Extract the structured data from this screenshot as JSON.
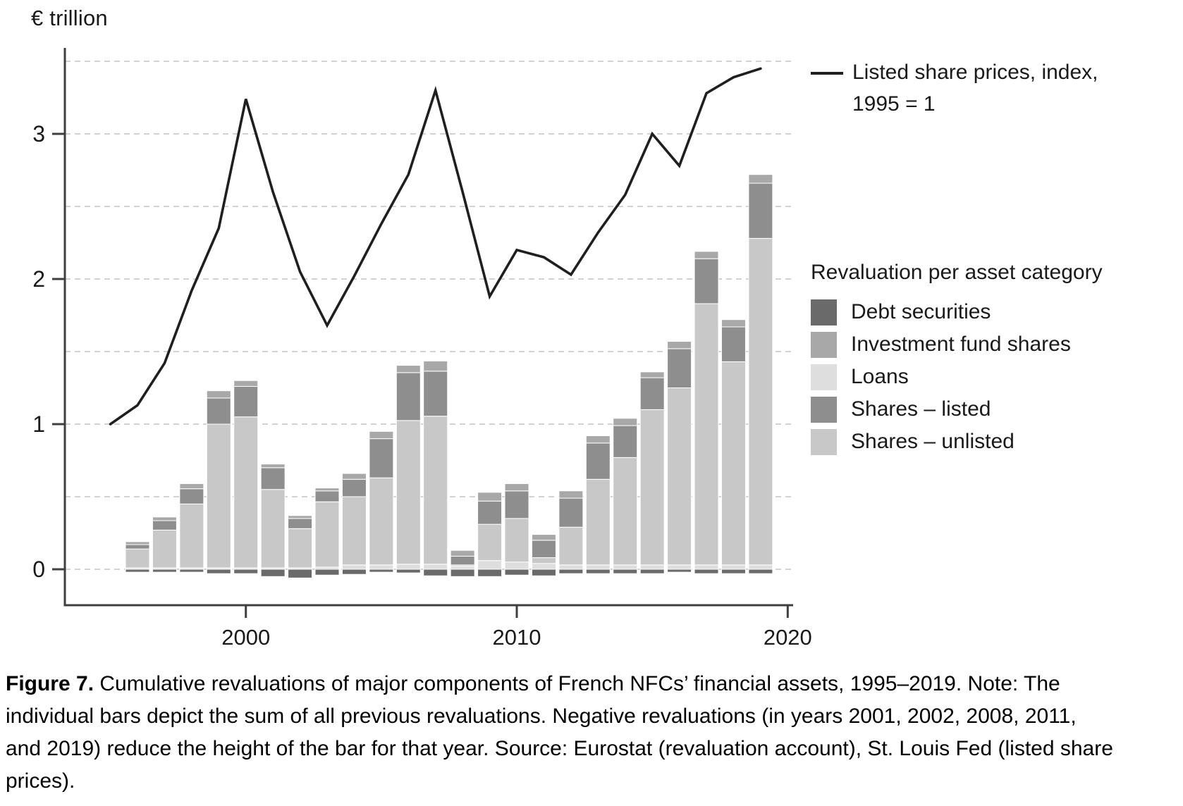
{
  "chart": {
    "y_axis_title": "€ trillion",
    "legend_line": {
      "label_line1": "Listed share prices, index,",
      "label_line2": "1995 = 1"
    },
    "legend_categories": {
      "title": "Revaluation per asset category",
      "items": [
        {
          "label": "Debt securities",
          "color": "#6a6a6a"
        },
        {
          "label": "Investment fund shares",
          "color": "#a8a8a8"
        },
        {
          "label": "Loans",
          "color": "#dedede"
        },
        {
          "label": "Shares – listed",
          "color": "#8e8e8e"
        },
        {
          "label": "Shares – unlisted",
          "color": "#c8c8c8"
        }
      ]
    }
  },
  "chart_data": {
    "type": "bar+line",
    "title": "Cumulative revaluations of major components of French NFCs’ financial assets, 1995–2019",
    "ylabel": "€ trillion",
    "ylim": [
      -0.35,
      3.6
    ],
    "y_ticks": [
      0,
      1,
      2,
      3
    ],
    "x_ticks": [
      2000,
      2010,
      2020
    ],
    "grid": "horizontal dashed every 0.5",
    "legend_position": "right",
    "categories": [
      1996,
      1997,
      1998,
      1999,
      2000,
      2001,
      2002,
      2003,
      2004,
      2005,
      2006,
      2007,
      2008,
      2009,
      2010,
      2011,
      2012,
      2013,
      2014,
      2015,
      2016,
      2017,
      2018,
      2019
    ],
    "series": [
      {
        "name": "Loans",
        "color": "#dedede",
        "values": [
          0.01,
          0.01,
          0.01,
          0.01,
          0.01,
          0.01,
          0.01,
          0.015,
          0.03,
          0.03,
          0.035,
          0.035,
          0.02,
          0.06,
          0.05,
          0.04,
          0.03,
          0.03,
          0.03,
          0.03,
          0.03,
          0.03,
          0.03,
          0.03
        ]
      },
      {
        "name": "Shares – unlisted",
        "color": "#c8c8c8",
        "values": [
          0.13,
          0.26,
          0.44,
          0.99,
          1.04,
          0.54,
          0.27,
          0.45,
          0.47,
          0.6,
          0.99,
          1.02,
          0.01,
          0.25,
          0.3,
          0.04,
          0.26,
          0.59,
          0.74,
          1.07,
          1.22,
          1.8,
          1.4,
          2.25
        ]
      },
      {
        "name": "Shares – listed",
        "color": "#8e8e8e",
        "values": [
          0.03,
          0.065,
          0.105,
          0.18,
          0.21,
          0.15,
          0.07,
          0.075,
          0.12,
          0.27,
          0.33,
          0.31,
          0.06,
          0.16,
          0.19,
          0.12,
          0.2,
          0.25,
          0.22,
          0.22,
          0.27,
          0.31,
          0.24,
          0.38
        ]
      },
      {
        "name": "Investment fund shares",
        "color": "#a8a8a8",
        "values": [
          0.02,
          0.025,
          0.035,
          0.05,
          0.04,
          0.025,
          0.02,
          0.02,
          0.04,
          0.05,
          0.05,
          0.07,
          0.04,
          0.06,
          0.05,
          0.04,
          0.05,
          0.05,
          0.05,
          0.04,
          0.05,
          0.05,
          0.05,
          0.06
        ]
      },
      {
        "name": "Debt securities",
        "color": "#6a6a6a",
        "values": [
          -0.02,
          -0.02,
          -0.02,
          -0.03,
          -0.03,
          -0.05,
          -0.06,
          -0.04,
          -0.035,
          -0.02,
          -0.025,
          -0.045,
          -0.05,
          -0.05,
          -0.04,
          -0.045,
          -0.03,
          -0.03,
          -0.03,
          -0.03,
          -0.02,
          -0.03,
          -0.03,
          -0.03
        ]
      }
    ],
    "line_series": {
      "name": "Listed share prices, index, 1995 = 1",
      "color": "#1f1f1f",
      "x": [
        1995,
        1996,
        1997,
        1998,
        1999,
        2000,
        2001,
        2002,
        2003,
        2004,
        2005,
        2006,
        2007,
        2008,
        2009,
        2010,
        2011,
        2012,
        2013,
        2014,
        2015,
        2016,
        2017,
        2018,
        2019
      ],
      "values": [
        1.0,
        1.13,
        1.42,
        1.92,
        2.35,
        3.24,
        2.6,
        2.05,
        1.68,
        2.02,
        2.38,
        2.72,
        3.3,
        2.6,
        1.88,
        2.2,
        2.15,
        2.03,
        2.32,
        2.58,
        3.0,
        2.78,
        3.28,
        3.39,
        3.45
      ]
    }
  },
  "caption": {
    "label": "Figure 7.",
    "text": "  Cumulative revaluations of major components of French NFCs’ financial assets, 1995–2019. Note: The individual bars depict the sum of all previous revaluations. Negative revaluations (in years 2001, 2002, 2008, 2011, and 2019) reduce the height of the bar for that year. Source: Eurostat (revaluation account), St. Louis Fed (listed share prices)."
  }
}
